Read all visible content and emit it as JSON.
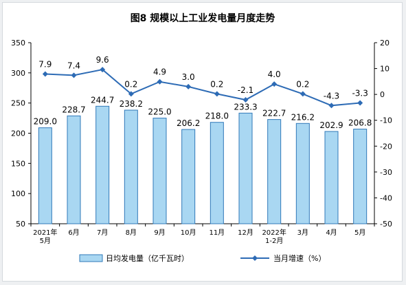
{
  "chart_data": {
    "type": "bar",
    "title": "图8  规模以上工业发电量月度走势",
    "categories": [
      [
        "2021年",
        "5月"
      ],
      [
        "6月"
      ],
      [
        "7月"
      ],
      [
        "8月"
      ],
      [
        "9月"
      ],
      [
        "10月"
      ],
      [
        "11月"
      ],
      [
        "12月"
      ],
      [
        "2022年",
        "1-2月"
      ],
      [
        "3月"
      ],
      [
        "4月"
      ],
      [
        "5月"
      ]
    ],
    "series": [
      {
        "name": "日均发电量（亿千瓦时）",
        "type": "bar",
        "axis": "left",
        "values": [
          209.0,
          228.7,
          244.7,
          238.2,
          225.0,
          206.2,
          218.0,
          233.3,
          222.7,
          216.2,
          202.9,
          206.8
        ],
        "labels": [
          "209.0",
          "228.7",
          "244.7",
          "238.2",
          "225.0",
          "206.2",
          "218.0",
          "233.3",
          "222.7",
          "216.2",
          "202.9",
          "206.8"
        ]
      },
      {
        "name": "当月增速（%）",
        "type": "line",
        "axis": "right",
        "values": [
          7.9,
          7.4,
          9.6,
          0.2,
          4.9,
          3.0,
          0.2,
          -2.1,
          4.0,
          0.2,
          -4.3,
          -3.3
        ],
        "labels": [
          "7.9",
          "7.4",
          "9.6",
          "0.2",
          "4.9",
          "3.0",
          "0.2",
          "-2.1",
          "4.0",
          "0.2",
          "-4.3",
          "-3.3"
        ]
      }
    ],
    "y_left": {
      "min": 50,
      "max": 350,
      "ticks": [
        "50",
        "100",
        "150",
        "200",
        "250",
        "300",
        "350"
      ]
    },
    "y_right": {
      "min": -50,
      "max": 20,
      "ticks": [
        "-50",
        "-40",
        "-30",
        "-20",
        "-10",
        "0",
        "10",
        "20"
      ]
    },
    "grid": false,
    "legend_position": "bottom"
  },
  "colors": {
    "bar_fill": "#a9d7f2",
    "bar_stroke": "#2f78b8",
    "line": "#2d6bb5",
    "text": "#000000"
  }
}
